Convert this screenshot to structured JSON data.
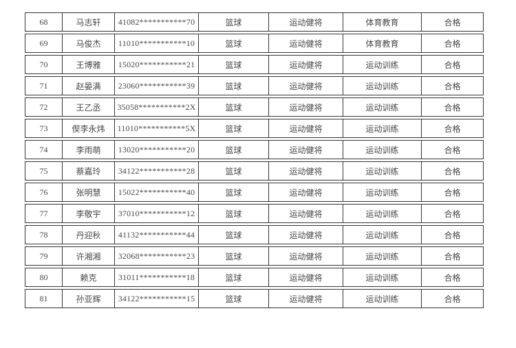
{
  "page": {
    "background_color": "#ffffff",
    "border_color": "#333333",
    "text_color": "#474747"
  },
  "table": {
    "description": "athlete-roster-table",
    "column_names": [
      "cell-index",
      "cell-name",
      "cell-id-number",
      "cell-sport",
      "cell-athlete-grade",
      "cell-major",
      "cell-result"
    ],
    "rows": [
      [
        "68",
        "马志轩",
        "41082***********70",
        "篮球",
        "运动健将",
        "体育教育",
        "合格"
      ],
      [
        "69",
        "马俊杰",
        "11010***********10",
        "篮球",
        "运动健将",
        "体育教育",
        "合格"
      ],
      [
        "70",
        "王博雅",
        "15020***********21",
        "篮球",
        "运动健将",
        "运动训练",
        "合格"
      ],
      [
        "71",
        "赵晏满",
        "23060***********39",
        "篮球",
        "运动健将",
        "运动训练",
        "合格"
      ],
      [
        "72",
        "王乙丞",
        "35058***********2X",
        "篮球",
        "运动健将",
        "运动训练",
        "合格"
      ],
      [
        "73",
        "偰李永炜",
        "11010***********5X",
        "篮球",
        "运动健将",
        "运动训练",
        "合格"
      ],
      [
        "74",
        "李雨萌",
        "13020***********20",
        "篮球",
        "运动健将",
        "运动训练",
        "合格"
      ],
      [
        "75",
        "蔡嘉玲",
        "34122***********28",
        "篮球",
        "运动健将",
        "运动训练",
        "合格"
      ],
      [
        "76",
        "张明慧",
        "15022***********40",
        "篮球",
        "运动健将",
        "运动训练",
        "合格"
      ],
      [
        "77",
        "李敬宇",
        "37010***********12",
        "篮球",
        "运动健将",
        "运动训练",
        "合格"
      ],
      [
        "78",
        "丹迎秋",
        "41132***********44",
        "篮球",
        "运动健将",
        "运动训练",
        "合格"
      ],
      [
        "79",
        "许湘湘",
        "32068***********23",
        "篮球",
        "运动健将",
        "运动训练",
        "合格"
      ],
      [
        "80",
        "赖克",
        "31011***********18",
        "篮球",
        "运动健将",
        "运动训练",
        "合格"
      ],
      [
        "81",
        "孙亚辉",
        "34122***********15",
        "篮球",
        "运动健将",
        "运动训练",
        "合格"
      ]
    ]
  }
}
